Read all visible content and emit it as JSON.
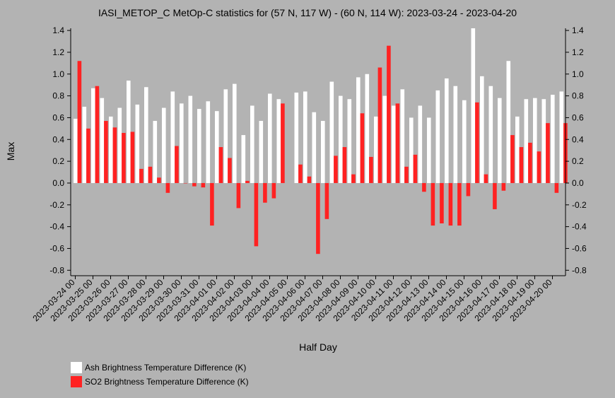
{
  "chart_data": {
    "type": "bar",
    "title": "IASI_METOP_C MetOp-C statistics for (57 N, 117 W) - (60 N, 114 W): 2023-03-24 - 2023-04-20",
    "xlabel": "Half Day",
    "ylabel": "Max",
    "ylim": [
      -0.85,
      1.42
    ],
    "y_ticks": [
      "1.4",
      "1.2",
      "1.0",
      "0.8",
      "0.6",
      "0.4",
      "0.2",
      "0.0",
      "-0.2",
      "-0.4",
      "-0.6",
      "-0.8"
    ],
    "y_tick_values": [
      1.4,
      1.2,
      1.0,
      0.8,
      0.6,
      0.4,
      0.2,
      0.0,
      -0.2,
      -0.4,
      -0.6,
      -0.8
    ],
    "x_tick_labels": [
      "2023-03-24 00",
      "2023-03-25 00",
      "2023-03-26 00",
      "2023-03-27 00",
      "2023-03-28 00",
      "2023-03-29 00",
      "2023-03-30 00",
      "2023-03-31 00",
      "2023-04-01 00",
      "2023-04-02 00",
      "2023-04-03 00",
      "2023-04-04 00",
      "2023-04-05 00",
      "2023-04-06 00",
      "2023-04-07 00",
      "2023-04-08 00",
      "2023-04-09 00",
      "2023-04-10 00",
      "2023-04-11 00",
      "2023-04-12 00",
      "2023-04-13 00",
      "2023-04-14 00",
      "2023-04-15 00",
      "2023-04-16 00",
      "2023-04-17 00",
      "2023-04-18 00",
      "2023-04-19 00",
      "2023-04-20 00"
    ],
    "legend_position": "bottom-left",
    "series": [
      {
        "name": "Ash Brightness Temperature Difference (K)",
        "color": "#ffffff",
        "values": [
          0.59,
          0.7,
          0.87,
          0.78,
          0.61,
          0.69,
          0.94,
          0.72,
          0.88,
          0.57,
          0.69,
          0.84,
          0.73,
          0.8,
          0.68,
          0.75,
          0.66,
          0.86,
          0.91,
          0.44,
          0.71,
          0.57,
          0.82,
          0.77,
          null,
          0.83,
          0.84,
          0.65,
          0.57,
          0.93,
          0.8,
          0.77,
          0.97,
          1.0,
          0.61,
          0.8,
          0.71,
          0.86,
          0.6,
          0.71,
          0.6,
          0.85,
          0.96,
          0.89,
          0.76,
          1.42,
          0.98,
          0.89,
          0.78,
          1.12,
          0.61,
          0.77,
          0.78,
          0.77,
          0.81,
          0.84
        ]
      },
      {
        "name": "SO2 Brightness Temperature Difference (K)",
        "color": "#ff2222",
        "values": [
          1.12,
          0.5,
          0.89,
          0.57,
          0.51,
          0.46,
          0.47,
          0.13,
          0.15,
          0.05,
          -0.09,
          0.34,
          0.0,
          -0.03,
          -0.04,
          -0.39,
          0.33,
          0.23,
          -0.23,
          0.02,
          -0.58,
          -0.18,
          -0.14,
          0.73,
          null,
          0.17,
          0.06,
          -0.65,
          -0.33,
          0.25,
          0.33,
          0.08,
          0.64,
          0.24,
          1.06,
          1.26,
          0.73,
          0.15,
          0.26,
          -0.08,
          -0.39,
          -0.37,
          -0.39,
          -0.39,
          -0.12,
          0.74,
          0.08,
          -0.24,
          -0.07,
          0.44,
          0.33,
          0.37,
          0.29,
          0.55,
          -0.09,
          0.55
        ]
      }
    ]
  }
}
